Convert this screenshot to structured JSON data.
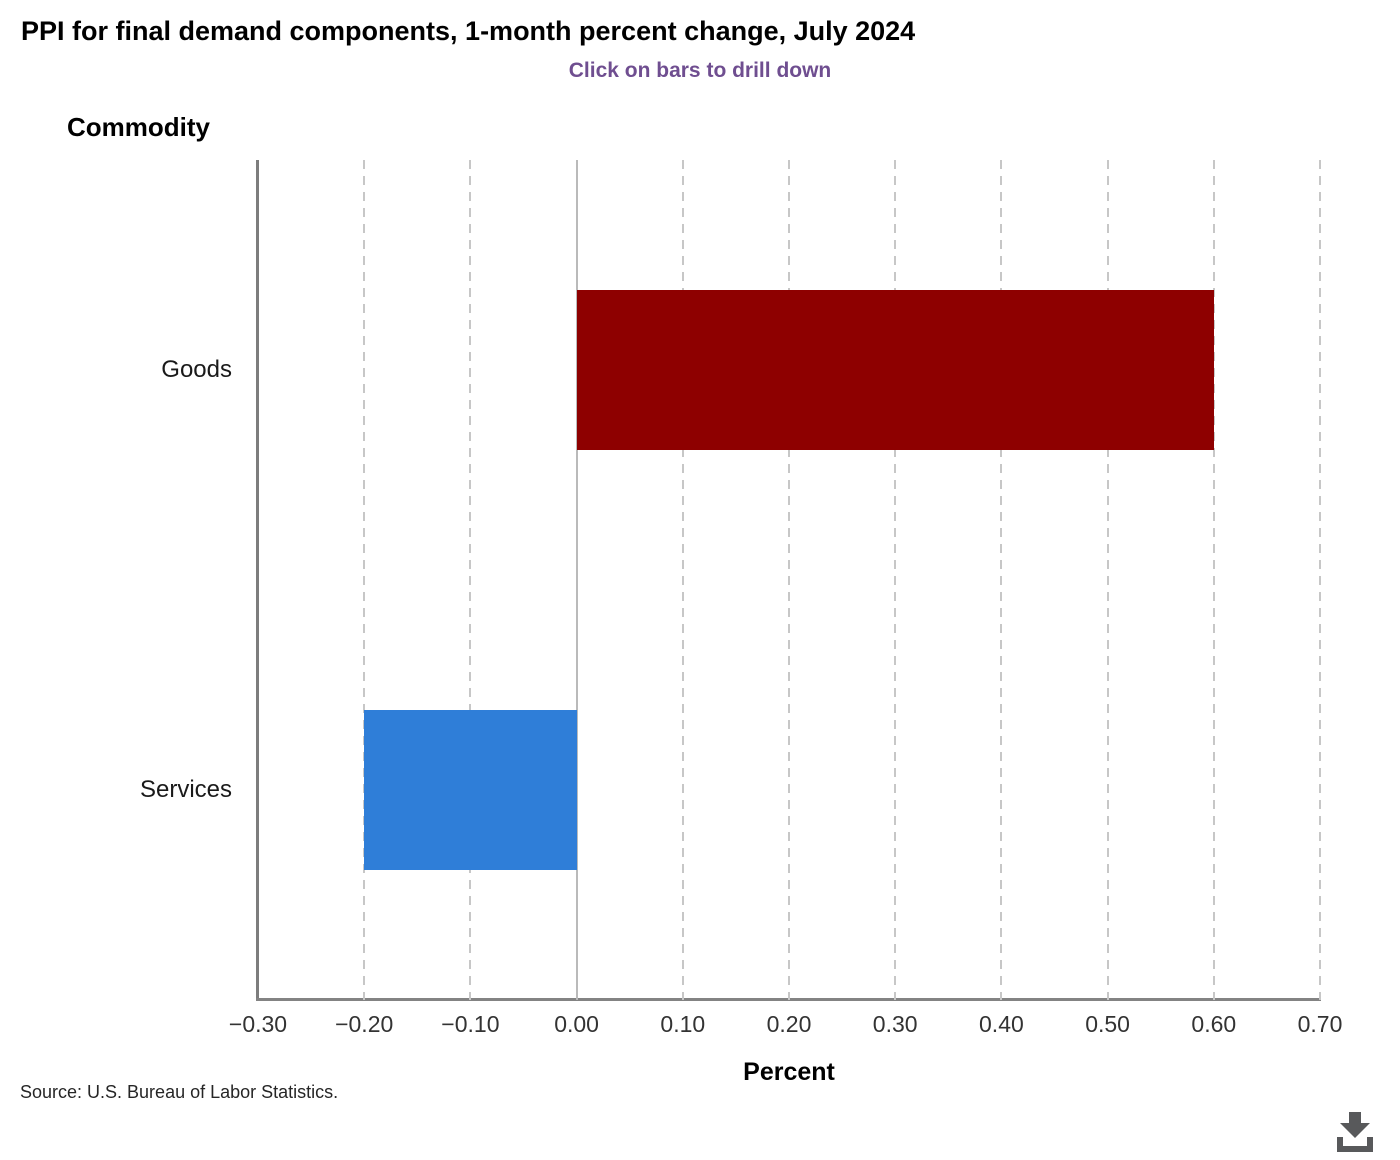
{
  "chart_data": {
    "type": "bar",
    "orientation": "horizontal",
    "title": "PPI for final demand components, 1-month percent change, July 2024",
    "subtitle": "Click on bars to drill down",
    "category_axis_title": "Commodity",
    "categories": [
      "Goods",
      "Services"
    ],
    "values": [
      0.6,
      -0.2
    ],
    "bar_colors": [
      "#8e0000",
      "#2f7ed8"
    ],
    "xlabel": "Percent",
    "xlim": [
      -0.3,
      0.7
    ],
    "x_ticks": [
      {
        "value": -0.3,
        "label": "−0.30"
      },
      {
        "value": -0.2,
        "label": "−0.20"
      },
      {
        "value": -0.1,
        "label": "−0.10"
      },
      {
        "value": 0.0,
        "label": "0.00"
      },
      {
        "value": 0.1,
        "label": "0.10"
      },
      {
        "value": 0.2,
        "label": "0.20"
      },
      {
        "value": 0.3,
        "label": "0.30"
      },
      {
        "value": 0.4,
        "label": "0.40"
      },
      {
        "value": 0.5,
        "label": "0.50"
      },
      {
        "value": 0.6,
        "label": "0.60"
      },
      {
        "value": 0.7,
        "label": "0.70"
      }
    ],
    "grid": "vertical-dashed",
    "legend": "none"
  },
  "footer": {
    "source": "Source: U.S. Bureau of Labor Statistics."
  },
  "icons": {
    "download": "download-icon"
  },
  "colors": {
    "bar_goods": "#8e0000",
    "bar_services": "#2f7ed8",
    "subtitle_text": "#6f4e90",
    "axis_line": "#7d7d7d",
    "gridline": "#c7c7c7",
    "zero_line": "#bababa",
    "icon": "#58595b"
  }
}
